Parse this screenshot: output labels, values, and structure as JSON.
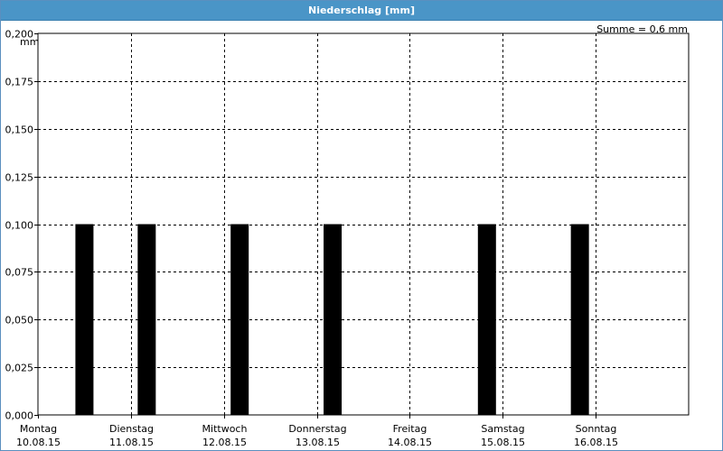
{
  "window": {
    "title": "Niederschlag [mm]"
  },
  "chart_data": {
    "type": "bar",
    "title": "Niederschlag [mm]",
    "ylabel": "mm",
    "annotation": "Summe = 0,6 mm",
    "ylim": [
      0,
      0.2
    ],
    "yticks": [
      "0,000",
      "0,025",
      "0,050",
      "0,075",
      "0,100",
      "0,125",
      "0,150",
      "0,175",
      "0,200"
    ],
    "xlim_days": [
      0,
      7
    ],
    "categories": [
      {
        "day": "Montag",
        "date": "10.08.15"
      },
      {
        "day": "Dienstag",
        "date": "11.08.15"
      },
      {
        "day": "Mittwoch",
        "date": "12.08.15"
      },
      {
        "day": "Donnerstag",
        "date": "13.08.15"
      },
      {
        "day": "Freitag",
        "date": "14.08.15"
      },
      {
        "day": "Samstag",
        "date": "15.08.15"
      },
      {
        "day": "Sonntag",
        "date": "16.08.15"
      }
    ],
    "bars": [
      {
        "day_offset": 0.5,
        "value": 0.1
      },
      {
        "day_offset": 1.17,
        "value": 0.1
      },
      {
        "day_offset": 2.17,
        "value": 0.1
      },
      {
        "day_offset": 3.17,
        "value": 0.1
      },
      {
        "day_offset": 4.83,
        "value": 0.1
      },
      {
        "day_offset": 5.83,
        "value": 0.1
      }
    ],
    "grid": true,
    "bar_color": "#000000",
    "grid_color": "#000000"
  }
}
